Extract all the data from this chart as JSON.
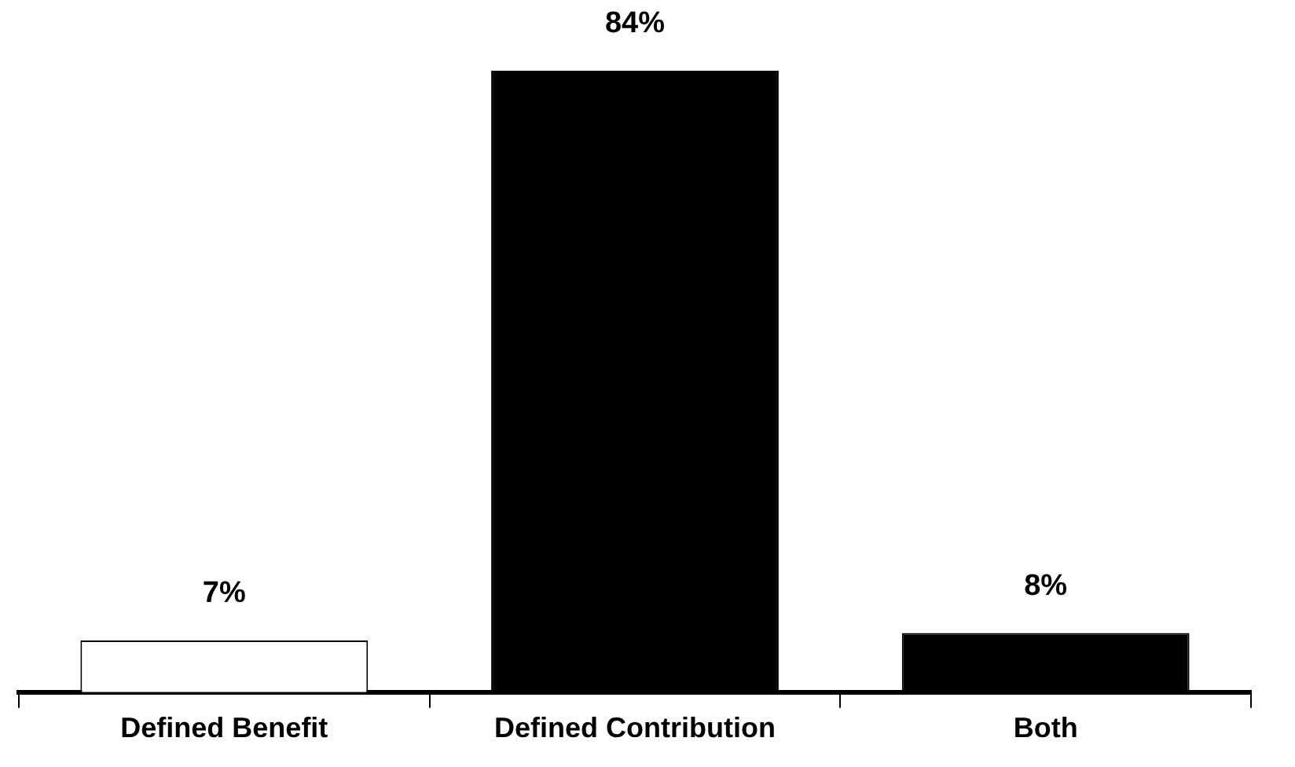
{
  "chart_data": {
    "type": "bar",
    "categories": [
      "Defined Benefit",
      "Defined Contribution",
      "Both"
    ],
    "values": [
      7,
      84,
      8
    ],
    "colors": [
      "#ffffff",
      "#000000",
      "#000000"
    ],
    "value_labels": [
      "7%",
      "84%",
      "8%"
    ],
    "tick_labels": "x",
    "grid": false,
    "legend": false
  }
}
